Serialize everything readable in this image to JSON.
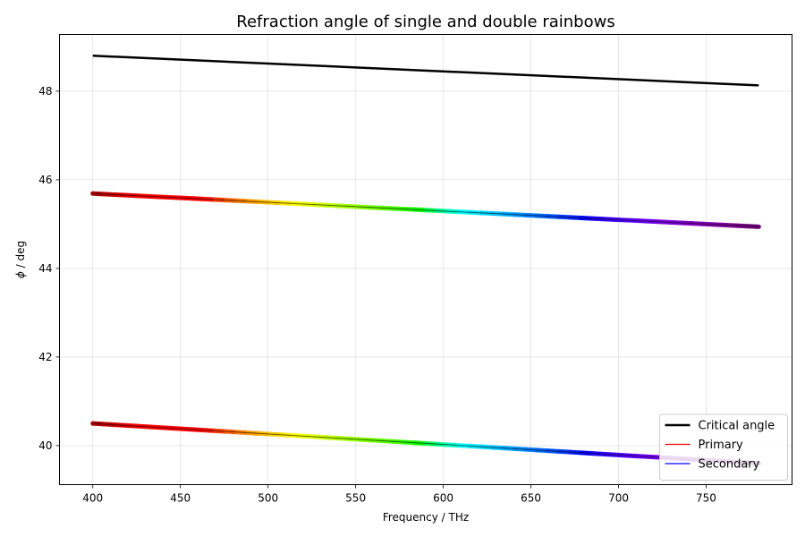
{
  "chart_data": {
    "type": "line",
    "title": "Refraction angle of single and double rainbows",
    "xlabel": "Frequency / THz",
    "ylabel": "ϕ / deg",
    "xlim": [
      381,
      799
    ],
    "ylim": [
      39.12,
      49.28
    ],
    "xticks": [
      400,
      450,
      500,
      550,
      600,
      650,
      700,
      750
    ],
    "yticks": [
      40,
      42,
      44,
      46,
      48
    ],
    "grid": true,
    "legend_position": "lower-right",
    "legend": [
      {
        "label": "Critical angle",
        "color": "#000000"
      },
      {
        "label": "Primary",
        "color": "#ff0000"
      },
      {
        "label": "Secondary",
        "color": "#0000ff"
      }
    ],
    "x_range": [
      400,
      780
    ],
    "series": [
      {
        "name": "Critical angle",
        "color": "#000000",
        "x": [
          400,
          780
        ],
        "values": [
          48.8,
          48.13
        ]
      },
      {
        "name": "Secondary",
        "style": "spectrum",
        "x": [
          400,
          780
        ],
        "values": [
          45.69,
          44.94
        ]
      },
      {
        "name": "Primary",
        "style": "spectrum",
        "x": [
          400,
          780
        ],
        "values": [
          40.5,
          39.6
        ]
      }
    ]
  }
}
